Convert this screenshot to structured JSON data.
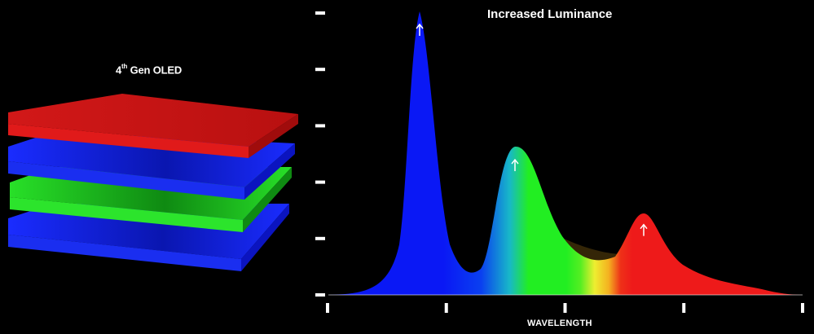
{
  "layer_stack": {
    "label_main": "4",
    "label_sup": "th",
    "label_rest": " Gen OLED",
    "layers": [
      {
        "name": "red-layer",
        "color": "#e01818"
      },
      {
        "name": "blue-layer-upper",
        "color": "#1020ee"
      },
      {
        "name": "green-layer",
        "color": "#22dd22"
      },
      {
        "name": "blue-layer-lower",
        "color": "#1020ee"
      }
    ]
  },
  "chart_data": {
    "type": "area",
    "title": "Increased Luminance",
    "xlabel": "WAVELENGTH",
    "ylabel": "",
    "x_ticks": 5,
    "y_ticks": 6,
    "peaks": [
      {
        "color": "blue",
        "hex": "#0a18f5",
        "level": 1.0,
        "arrow": true
      },
      {
        "color": "green",
        "hex": "#22ee22",
        "level": 0.52,
        "arrow": true
      },
      {
        "color": "red",
        "hex": "#ee1a1a",
        "level": 0.29,
        "arrow": true
      }
    ],
    "grid": false,
    "legend": "none"
  }
}
